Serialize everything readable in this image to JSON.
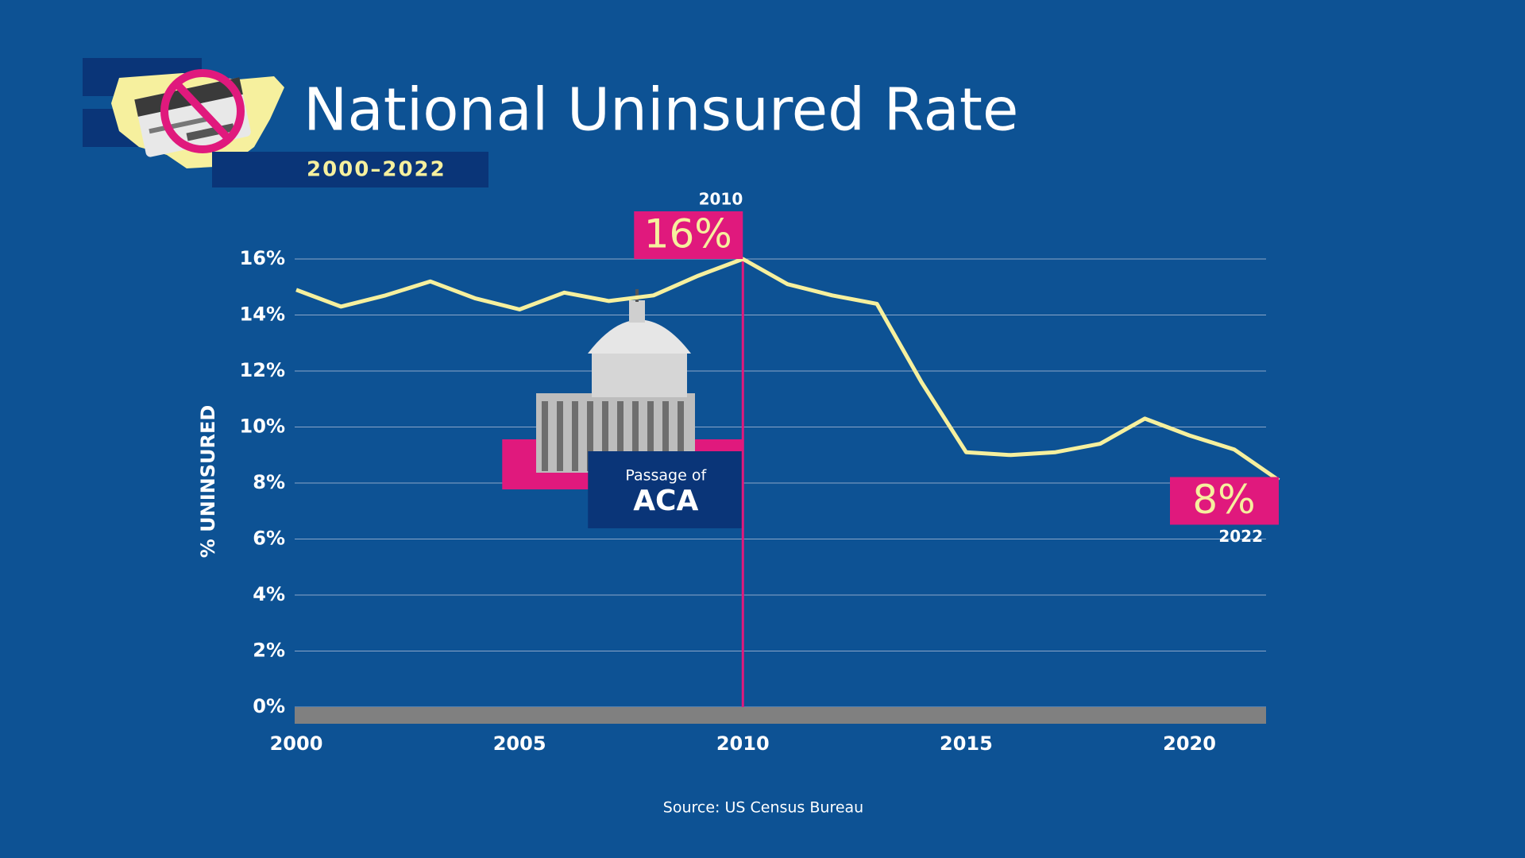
{
  "title": "National Uninsured Rate",
  "subtitle": "2000–2022",
  "source": "Source: US Census Bureau",
  "chart_data": {
    "type": "line",
    "ylabel": "% UNINSURED",
    "x": [
      2000,
      2001,
      2002,
      2003,
      2004,
      2005,
      2006,
      2007,
      2008,
      2009,
      2010,
      2011,
      2012,
      2013,
      2014,
      2015,
      2016,
      2017,
      2018,
      2019,
      2020,
      2021,
      2022
    ],
    "series": [
      {
        "color": "#f6f09e",
        "values": [
          14.9,
          14.3,
          14.7,
          15.2,
          14.6,
          14.2,
          14.8,
          14.5,
          14.7,
          15.4,
          16.0,
          15.1,
          14.7,
          14.4,
          11.6,
          9.1,
          9.0,
          9.1,
          9.4,
          10.3,
          9.7,
          9.2,
          8.1
        ],
        "value_labels": [
          null,
          null,
          null,
          null,
          null,
          null,
          null,
          null,
          null,
          null,
          "16%",
          null,
          null,
          null,
          null,
          null,
          null,
          null,
          null,
          null,
          null,
          null,
          "8%"
        ],
        "x_value_labels": [
          null,
          null,
          null,
          null,
          null,
          null,
          null,
          null,
          null,
          null,
          "2010",
          null,
          null,
          null,
          null,
          null,
          null,
          null,
          null,
          null,
          null,
          null,
          "2022"
        ]
      }
    ],
    "xlim": [
      2000,
      2022
    ],
    "xticks": [
      2000,
      2005,
      2010,
      2015,
      2020
    ],
    "ylim": [
      0,
      16
    ],
    "yticks": [
      {
        "value": 0,
        "label": "0%"
      },
      {
        "value": 2,
        "label": "2%"
      },
      {
        "value": 4,
        "label": "4%"
      },
      {
        "value": 6,
        "label": "6%"
      },
      {
        "value": 8,
        "label": "8%"
      },
      {
        "value": 10,
        "label": "10%"
      },
      {
        "value": 12,
        "label": "12%"
      },
      {
        "value": 14,
        "label": "14%"
      },
      {
        "value": 16,
        "label": "16%"
      }
    ],
    "grid": true,
    "event": {
      "x": 2010,
      "label": "Passage of",
      "sublabel": "ACA",
      "color": "#e0197d"
    }
  }
}
